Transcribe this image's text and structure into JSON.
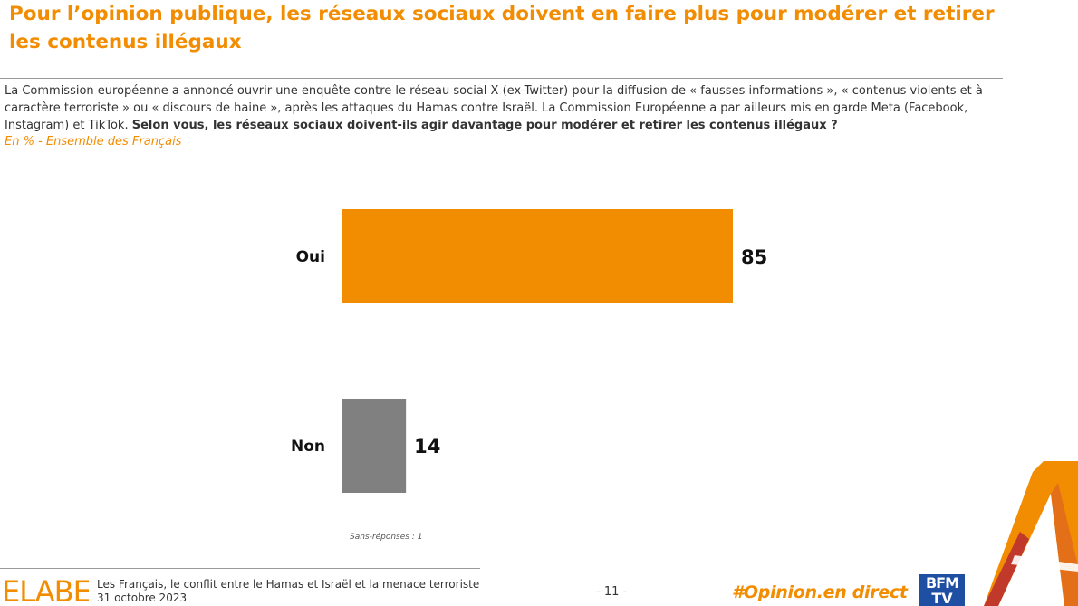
{
  "header": {
    "title": "Pour l’opinion publique, les réseaux sociaux doivent en faire plus pour modérer et retirer les contenus illégaux",
    "question_intro": "La Commission européenne a annoncé ouvrir une enquête contre le réseau social X (ex-Twitter) pour la diffusion de « fausses informations », « contenus violents et à caractère terroriste » ou « discours de haine », après les attaques du Hamas contre Israël. La Commission Européenne a par ailleurs mis en garde Meta (Facebook, Instagram) et TikTok.",
    "question_bold": "Selon vous, les réseaux sociaux doivent-ils agir davantage pour modérer et retirer les contenus illégaux ?",
    "base": "En % - Ensemble des Français"
  },
  "chart_data": {
    "type": "bar",
    "orientation": "horizontal",
    "categories": [
      "Oui",
      "Non"
    ],
    "values": [
      85,
      14
    ],
    "colors": [
      "#f28c00",
      "#808080"
    ],
    "xlim": [
      0,
      100
    ],
    "value_labels": [
      "85",
      "14"
    ],
    "note": "Sans-réponses : 1"
  },
  "footer": {
    "logo_text": "ELABE",
    "study_title": "Les Français, le conflit entre le Hamas et Israël et la menace terroriste",
    "date": "31 octobre 2023",
    "page": "- 11 -",
    "hashtag": "#Opinion.en direct",
    "partner_line1": "BFM",
    "partner_line2": "TV"
  },
  "colors": {
    "accent": "#f28c00",
    "secondary_bar": "#808080",
    "partner_blue": "#1f4fa3",
    "deco_red": "#c0392b"
  }
}
